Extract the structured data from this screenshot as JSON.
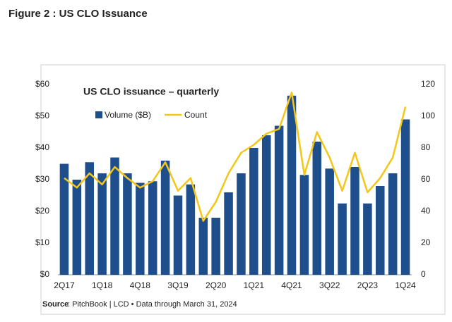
{
  "header": {
    "title": "Figure 2 : US CLO Issuance"
  },
  "chart_data": {
    "type": "bar-line",
    "title": "US CLO issuance – quarterly",
    "categories": [
      "2Q17",
      null,
      null,
      "1Q18",
      null,
      null,
      "4Q18",
      null,
      null,
      "3Q19",
      null,
      null,
      "2Q20",
      null,
      null,
      "1Q21",
      null,
      null,
      "4Q21",
      null,
      null,
      "3Q22",
      null,
      null,
      "2Q23",
      null,
      null,
      "1Q24"
    ],
    "series": [
      {
        "name": "Volume ($B)",
        "color": "#1f4e8c",
        "kind": "bar",
        "axis": "y",
        "values": [
          35,
          30,
          35.5,
          32,
          37,
          32,
          29,
          29.5,
          36,
          25,
          28.5,
          18,
          18,
          26,
          32,
          40,
          44,
          47,
          56.5,
          31.5,
          42,
          33.5,
          22.5,
          34,
          22.5,
          28,
          32,
          49
        ]
      },
      {
        "name": "Count",
        "color": "#f5c518",
        "kind": "line",
        "axis": "y2",
        "values": [
          61,
          55,
          64,
          57,
          68,
          61,
          55,
          59,
          71,
          53,
          61,
          34,
          46,
          64,
          77,
          82,
          89,
          92,
          115,
          63,
          90,
          74,
          53,
          77,
          52,
          61,
          74,
          106
        ]
      }
    ],
    "ylim": [
      0,
      60
    ],
    "yticks": [
      {
        "value": 0,
        "label": "$0"
      },
      {
        "value": 10,
        "label": "$10"
      },
      {
        "value": 20,
        "label": "$20"
      },
      {
        "value": 30,
        "label": "$30"
      },
      {
        "value": 40,
        "label": "$40"
      },
      {
        "value": 50,
        "label": "$50"
      },
      {
        "value": 60,
        "label": "$60"
      }
    ],
    "y2lim": [
      0,
      120
    ],
    "y2ticks": [
      0,
      20,
      40,
      60,
      80,
      100,
      120
    ],
    "source_label": "Source",
    "source": ": PitchBook | LCD • Data through March 31, 2024"
  }
}
